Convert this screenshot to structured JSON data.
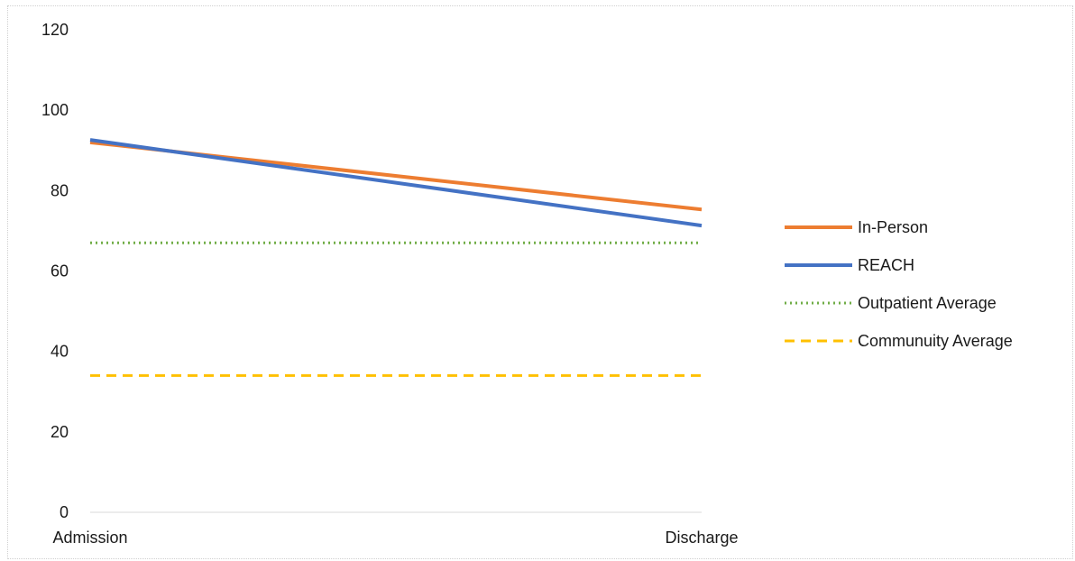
{
  "chart_data": {
    "type": "line",
    "categories": [
      "Admission",
      "Discharge"
    ],
    "ylim": [
      0,
      120
    ],
    "ytick_values": [
      0,
      20,
      40,
      60,
      80,
      100,
      120
    ],
    "ytick_labels": [
      "0",
      "20",
      "40",
      "60",
      "80",
      "100",
      "120"
    ],
    "grid": false,
    "legend_position": "right",
    "series": [
      {
        "name": "In-Person",
        "values": [
          92,
          75.3
        ],
        "color": "#ED7D31",
        "style": "solid"
      },
      {
        "name": "REACH",
        "values": [
          92.6,
          71.3
        ],
        "color": "#4472C4",
        "style": "solid"
      },
      {
        "name": "Outpatient Average",
        "values": [
          67,
          67
        ],
        "color": "#70AD47",
        "style": "dotted"
      },
      {
        "name": "Communuity Average",
        "values": [
          34,
          34
        ],
        "color": "#FFC000",
        "style": "dashed"
      }
    ]
  }
}
